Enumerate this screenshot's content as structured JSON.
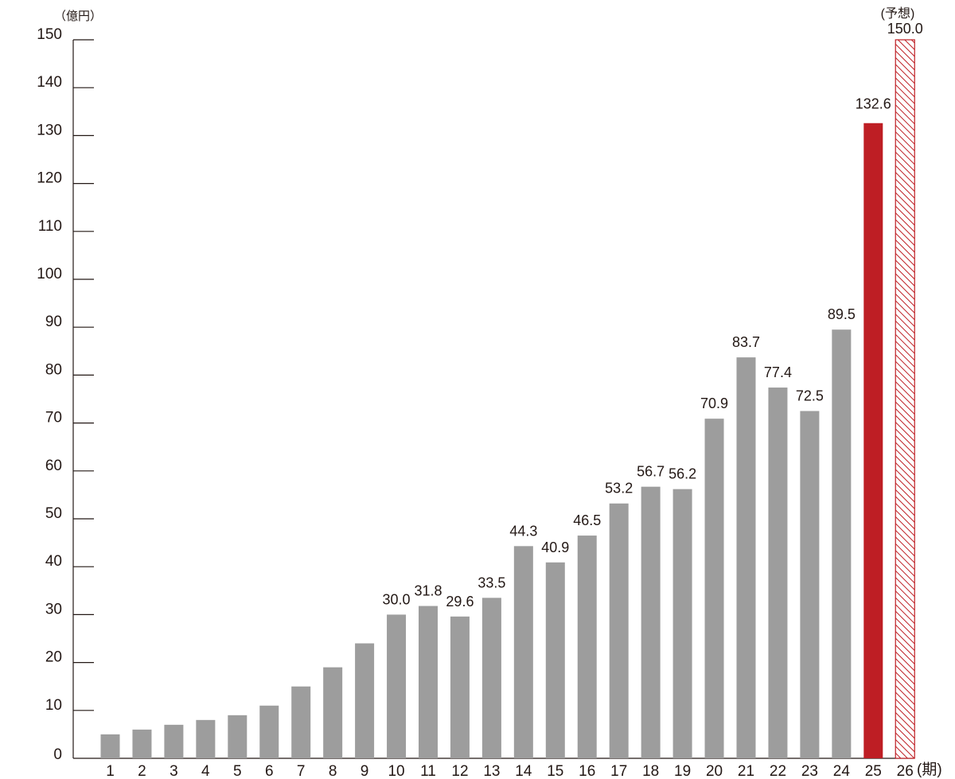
{
  "chart_data": {
    "type": "bar",
    "y_unit": "（億円）",
    "x_unit": "(期)",
    "ylim": [
      0,
      150
    ],
    "yticks": [
      0,
      10,
      20,
      30,
      40,
      50,
      60,
      70,
      80,
      90,
      100,
      110,
      120,
      130,
      140,
      150
    ],
    "categories": [
      "1",
      "2",
      "3",
      "4",
      "5",
      "6",
      "7",
      "8",
      "9",
      "10",
      "11",
      "12",
      "13",
      "14",
      "15",
      "16",
      "17",
      "18",
      "19",
      "20",
      "21",
      "22",
      "23",
      "24",
      "25",
      "26"
    ],
    "values": [
      5.0,
      6.0,
      7.0,
      8.0,
      9.0,
      11.0,
      15.0,
      19.0,
      24.0,
      30.0,
      31.8,
      29.6,
      33.5,
      44.3,
      40.9,
      46.5,
      53.2,
      56.7,
      56.2,
      70.9,
      83.7,
      77.4,
      72.5,
      89.5,
      132.6,
      150.0
    ],
    "value_labels": [
      "",
      "",
      "",
      "",
      "",
      "",
      "",
      "",
      "",
      "30.0",
      "31.8",
      "29.6",
      "33.5",
      "44.3",
      "40.9",
      "46.5",
      "53.2",
      "56.7",
      "56.2",
      "70.9",
      "83.7",
      "77.4",
      "72.5",
      "89.5",
      "132.6",
      "150.0"
    ],
    "bar_styles": [
      "actual",
      "actual",
      "actual",
      "actual",
      "actual",
      "actual",
      "actual",
      "actual",
      "actual",
      "actual",
      "actual",
      "actual",
      "actual",
      "actual",
      "actual",
      "actual",
      "actual",
      "actual",
      "actual",
      "actual",
      "actual",
      "actual",
      "actual",
      "actual",
      "current",
      "forecast"
    ],
    "forecast_note": "(予想)",
    "colors": {
      "actual": "#9d9d9d",
      "current": "#be1e24",
      "forecast": "#be1e24",
      "text": "#231815",
      "axis": "#231815"
    },
    "grid": false
  }
}
